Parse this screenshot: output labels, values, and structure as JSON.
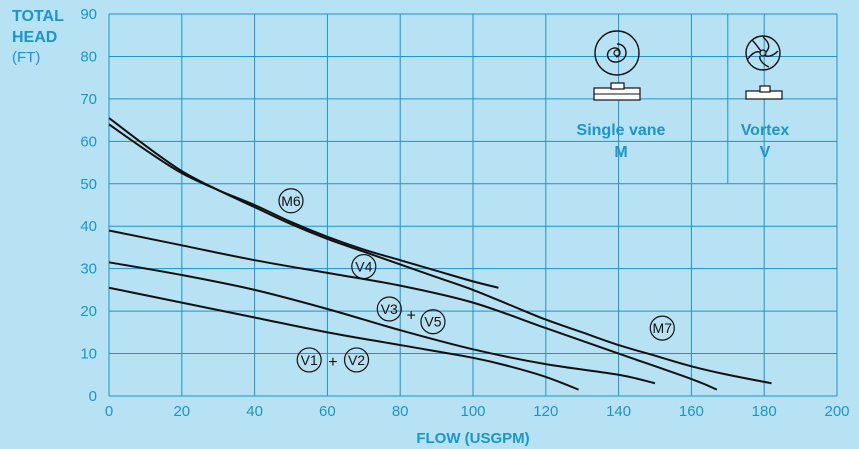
{
  "chart_data": {
    "type": "line",
    "ylabel_line1": "TOTAL",
    "ylabel_line2": "HEAD",
    "ylabel_unit": "(FT)",
    "xlabel": "FLOW (USGPM)",
    "xlim": [
      0,
      200
    ],
    "ylim": [
      0,
      90
    ],
    "x_ticks": [
      0,
      20,
      40,
      60,
      80,
      100,
      120,
      140,
      160,
      180,
      200
    ],
    "y_ticks": [
      0,
      10,
      20,
      30,
      40,
      50,
      60,
      70,
      80,
      90
    ],
    "grid": true,
    "series": [
      {
        "name": "M6",
        "points": [
          [
            0,
            64
          ],
          [
            10,
            58
          ],
          [
            20,
            52.5
          ],
          [
            30,
            48.5
          ],
          [
            40,
            45
          ],
          [
            50,
            41
          ],
          [
            60,
            37.5
          ],
          [
            70,
            34.5
          ],
          [
            80,
            32
          ],
          [
            90,
            29.5
          ],
          [
            100,
            27
          ],
          [
            107,
            25.5
          ]
        ]
      },
      {
        "name": "M7",
        "points": [
          [
            0,
            65.5
          ],
          [
            10,
            59
          ],
          [
            20,
            53
          ],
          [
            30,
            48.5
          ],
          [
            40,
            44.5
          ],
          [
            50,
            40.5
          ],
          [
            60,
            37
          ],
          [
            70,
            34
          ],
          [
            80,
            31
          ],
          [
            90,
            28
          ],
          [
            100,
            25
          ],
          [
            110,
            21.5
          ],
          [
            120,
            18
          ],
          [
            130,
            15
          ],
          [
            140,
            12
          ],
          [
            150,
            9.5
          ],
          [
            160,
            7
          ],
          [
            170,
            5
          ],
          [
            182,
            3
          ]
        ]
      },
      {
        "name": "V4",
        "points": [
          [
            0,
            39
          ],
          [
            20,
            35.5
          ],
          [
            40,
            32
          ],
          [
            60,
            29
          ],
          [
            80,
            26
          ],
          [
            100,
            22
          ],
          [
            120,
            16
          ],
          [
            140,
            10
          ],
          [
            160,
            4
          ],
          [
            167,
            1.5
          ]
        ]
      },
      {
        "name": "V3 + V5",
        "points": [
          [
            0,
            31.5
          ],
          [
            20,
            28.5
          ],
          [
            40,
            25
          ],
          [
            60,
            20.5
          ],
          [
            80,
            15.5
          ],
          [
            100,
            11
          ],
          [
            120,
            7.5
          ],
          [
            140,
            5
          ],
          [
            150,
            3
          ]
        ]
      },
      {
        "name": "V1 + V2",
        "points": [
          [
            0,
            25.5
          ],
          [
            20,
            22
          ],
          [
            40,
            18.5
          ],
          [
            60,
            15
          ],
          [
            80,
            12
          ],
          [
            100,
            9
          ],
          [
            110,
            7
          ],
          [
            120,
            4.5
          ],
          [
            129,
            1.5
          ]
        ]
      }
    ],
    "curve_labels": [
      {
        "text": "M6",
        "x": 50,
        "y": 46
      },
      {
        "text": "V4",
        "x": 70,
        "y": 30.5
      },
      {
        "text": "V3",
        "x": 77,
        "y": 20.5
      },
      {
        "text": "+",
        "x": 83,
        "y": 19
      },
      {
        "text": "V5",
        "x": 89,
        "y": 17.5
      },
      {
        "text": "M7",
        "x": 152,
        "y": 16
      },
      {
        "text": "V1",
        "x": 55,
        "y": 8.5
      },
      {
        "text": "+",
        "x": 61.5,
        "y": 8
      },
      {
        "text": "V2",
        "x": 68,
        "y": 8.5
      }
    ],
    "impeller_types": [
      {
        "name": "Single vane",
        "code": "M",
        "icon": "single-vane-impeller-icon"
      },
      {
        "name": "Vortex",
        "code": "V",
        "icon": "vortex-impeller-icon"
      }
    ],
    "colors": {
      "background": "#b7e2f3",
      "grid": "#1a95cd",
      "text": "#1a95cd",
      "curves": "#111111"
    }
  }
}
